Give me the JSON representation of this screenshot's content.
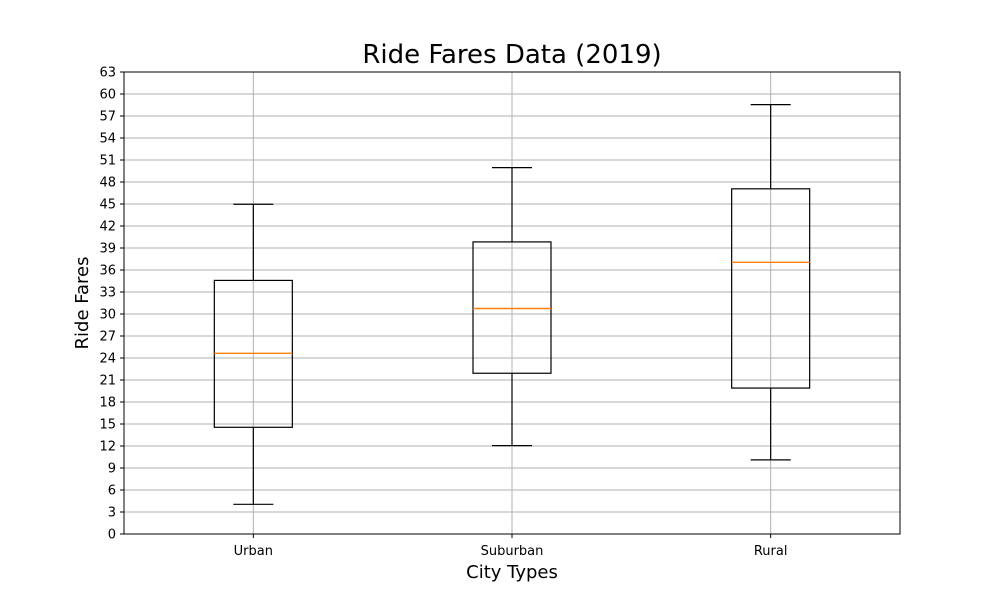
{
  "chart_data": {
    "type": "box",
    "title": "Ride Fares Data (2019)",
    "xlabel": "City Types",
    "ylabel": "Ride Fares",
    "categories": [
      "Urban",
      "Suburban",
      "Rural"
    ],
    "ylim": [
      0,
      63
    ],
    "yticks": [
      0,
      3,
      6,
      9,
      12,
      15,
      18,
      21,
      24,
      27,
      30,
      33,
      36,
      39,
      42,
      45,
      48,
      51,
      54,
      57,
      60,
      63
    ],
    "ytick_labels": [
      "0",
      "3",
      "6",
      "9",
      "12",
      "15",
      "18",
      "21",
      "24",
      "27",
      "30",
      "33",
      "36",
      "39",
      "42",
      "45",
      "48",
      "51",
      "54",
      "57",
      "60",
      "63"
    ],
    "boxes": [
      {
        "category": "Urban",
        "whisker_low": 4.05,
        "q1": 14.55,
        "median": 24.64,
        "q3": 34.58,
        "whisker_high": 44.97
      },
      {
        "category": "Suburban",
        "whisker_low": 12.05,
        "q1": 21.92,
        "median": 30.75,
        "q3": 39.83,
        "whisker_high": 49.96
      },
      {
        "category": "Rural",
        "whisker_low": 10.11,
        "q1": 19.9,
        "median": 37.05,
        "q3": 47.07,
        "whisker_high": 58.55
      }
    ],
    "grid": true,
    "colors": {
      "box": "#000000",
      "median": "#ff7f0e",
      "grid": "#b0b0b0",
      "axis": "#000000"
    }
  }
}
